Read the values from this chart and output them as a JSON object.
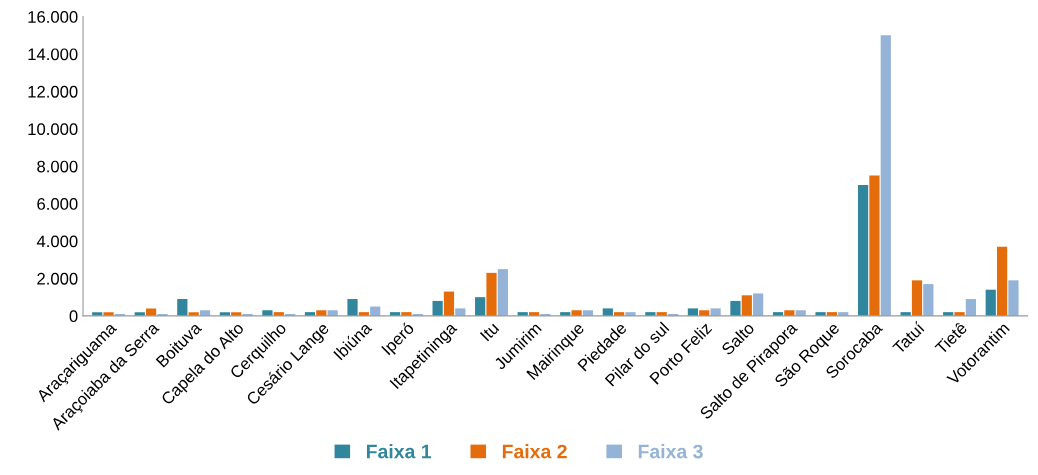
{
  "chart_data": {
    "type": "bar",
    "categories": [
      "Araçariguama",
      "Araçoiaba da Serra",
      "Boituva",
      "Capela do Alto",
      "Cerquilho",
      "Cesário Lange",
      "Ibiúna",
      "Iperó",
      "Itapetininga",
      "Itu",
      "Jumirim",
      "Mairinque",
      "Piedade",
      "Pilar do sul",
      "Porto Feliz",
      "Salto",
      "Salto de Pirapora",
      "São Roque",
      "Sorocaba",
      "Tatuí",
      "Tietê",
      "Votorantim"
    ],
    "series": [
      {
        "name": "Faixa 1",
        "color": "#31859c",
        "values": [
          200,
          200,
          900,
          200,
          300,
          200,
          900,
          200,
          800,
          1000,
          200,
          200,
          400,
          200,
          400,
          800,
          200,
          200,
          7000,
          200,
          200,
          1400
        ]
      },
      {
        "name": "Faixa 2",
        "color": "#e46c0a",
        "values": [
          200,
          400,
          200,
          200,
          200,
          300,
          200,
          200,
          1300,
          2300,
          200,
          300,
          200,
          200,
          300,
          1100,
          300,
          200,
          7500,
          1900,
          200,
          3700
        ]
      },
      {
        "name": "Faixa 3",
        "color": "#95b3d7",
        "values": [
          100,
          100,
          300,
          100,
          100,
          300,
          500,
          100,
          400,
          2500,
          100,
          300,
          200,
          100,
          400,
          1200,
          300,
          200,
          15000,
          1700,
          900,
          1900
        ]
      }
    ],
    "ylim": [
      0,
      16000
    ],
    "yticks": [
      {
        "value": 0,
        "label": "0"
      },
      {
        "value": 2000,
        "label": "2.000"
      },
      {
        "value": 4000,
        "label": "4.000"
      },
      {
        "value": 6000,
        "label": "6.000"
      },
      {
        "value": 8000,
        "label": "8.000"
      },
      {
        "value": 10000,
        "label": "10.000"
      },
      {
        "value": 12000,
        "label": "12.000"
      },
      {
        "value": 14000,
        "label": "14.000"
      },
      {
        "value": 16000,
        "label": "16.000"
      }
    ],
    "grid": false,
    "legend": "bottom"
  }
}
